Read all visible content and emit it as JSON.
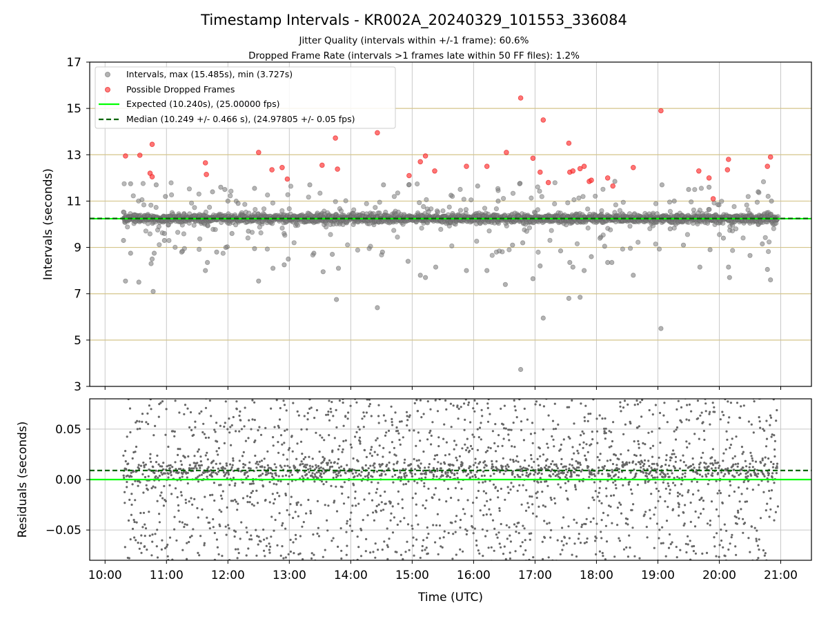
{
  "chart_data": [
    {
      "type": "scatter",
      "title": "Timestamp Intervals - KR002A_20240329_101553_336084",
      "subtitle_lines": [
        "Jitter Quality (intervals within +/-1 frame): 60.6%",
        "Dropped Frame Rate (intervals >1 frames late within 50 FF files): 1.2%"
      ],
      "xlabel": "",
      "ylabel": "Intervals (seconds)",
      "xlim_hours": [
        9.75,
        21.5
      ],
      "ylim": [
        3,
        17
      ],
      "yticks": [
        3,
        5,
        7,
        9,
        11,
        13,
        15,
        17
      ],
      "grid": "on",
      "legend_position": "top-left",
      "legend": [
        "Intervals, max (15.485s), min (3.727s)",
        "Possible Dropped Frames",
        "Expected (10.240s), (25.00000 fps)",
        "Median (10.249 +/- 0.466 s), (24.97805 +/- 0.05 fps)"
      ],
      "expected_interval": 10.24,
      "median_interval": 10.249,
      "dropped_frames": [
        {
          "x": "10:20",
          "y": 12.95
        },
        {
          "x": "10:34",
          "y": 12.98
        },
        {
          "x": "10:44",
          "y": 12.2
        },
        {
          "x": "10:46",
          "y": 12.05
        },
        {
          "x": "10:46",
          "y": 13.45
        },
        {
          "x": "11:38",
          "y": 12.65
        },
        {
          "x": "11:39",
          "y": 12.15
        },
        {
          "x": "12:30",
          "y": 13.1
        },
        {
          "x": "12:43",
          "y": 12.35
        },
        {
          "x": "12:53",
          "y": 12.45
        },
        {
          "x": "12:58",
          "y": 11.95
        },
        {
          "x": "13:32",
          "y": 12.55
        },
        {
          "x": "13:45",
          "y": 13.72
        },
        {
          "x": "13:47",
          "y": 12.38
        },
        {
          "x": "14:26",
          "y": 13.95
        },
        {
          "x": "14:57",
          "y": 12.1
        },
        {
          "x": "15:08",
          "y": 12.7
        },
        {
          "x": "15:13",
          "y": 12.95
        },
        {
          "x": "15:22",
          "y": 12.3
        },
        {
          "x": "15:53",
          "y": 12.5
        },
        {
          "x": "16:13",
          "y": 12.5
        },
        {
          "x": "16:32",
          "y": 13.1
        },
        {
          "x": "16:46",
          "y": 15.45
        },
        {
          "x": "16:58",
          "y": 12.85
        },
        {
          "x": "17:05",
          "y": 12.25
        },
        {
          "x": "17:08",
          "y": 14.5
        },
        {
          "x": "17:13",
          "y": 11.8
        },
        {
          "x": "17:33",
          "y": 13.5
        },
        {
          "x": "17:34",
          "y": 12.25
        },
        {
          "x": "17:37",
          "y": 12.3
        },
        {
          "x": "17:44",
          "y": 12.4
        },
        {
          "x": "17:48",
          "y": 12.5
        },
        {
          "x": "17:53",
          "y": 11.85
        },
        {
          "x": "17:55",
          "y": 11.9
        },
        {
          "x": "18:11",
          "y": 12.0
        },
        {
          "x": "18:16",
          "y": 11.65
        },
        {
          "x": "18:36",
          "y": 12.45
        },
        {
          "x": "19:03",
          "y": 14.9
        },
        {
          "x": "19:40",
          "y": 12.3
        },
        {
          "x": "19:50",
          "y": 12.0
        },
        {
          "x": "19:54",
          "y": 11.1
        },
        {
          "x": "20:08",
          "y": 12.35
        },
        {
          "x": "20:09",
          "y": 12.8
        },
        {
          "x": "20:47",
          "y": 12.5
        },
        {
          "x": "20:50",
          "y": 12.9
        }
      ],
      "outlier_intervals": [
        {
          "x": "10:20",
          "y": 7.55
        },
        {
          "x": "10:18",
          "y": 9.3
        },
        {
          "x": "10:25",
          "y": 8.75
        },
        {
          "x": "10:25",
          "y": 11.75
        },
        {
          "x": "10:33",
          "y": 7.5
        },
        {
          "x": "10:45",
          "y": 8.3
        },
        {
          "x": "10:46",
          "y": 8.5
        },
        {
          "x": "10:47",
          "y": 7.1
        },
        {
          "x": "10:48",
          "y": 8.75
        },
        {
          "x": "10:50",
          "y": 11.7
        },
        {
          "x": "10:58",
          "y": 9.3
        },
        {
          "x": "10:58",
          "y": 9.6
        },
        {
          "x": "10:59",
          "y": 11.2
        },
        {
          "x": "11:40",
          "y": 8.35
        },
        {
          "x": "11:38",
          "y": 8.0
        },
        {
          "x": "11:45",
          "y": 11.4
        },
        {
          "x": "11:49",
          "y": 8.8
        },
        {
          "x": "11:53",
          "y": 11.6
        },
        {
          "x": "11:57",
          "y": 11.5
        },
        {
          "x": "11:58",
          "y": 9.0
        },
        {
          "x": "12:00",
          "y": 11.0
        },
        {
          "x": "12:04",
          "y": 9.6
        },
        {
          "x": "12:10",
          "y": 10.9
        },
        {
          "x": "12:20",
          "y": 9.7
        },
        {
          "x": "12:26",
          "y": 11.55
        },
        {
          "x": "12:26",
          "y": 8.95
        },
        {
          "x": "12:30",
          "y": 7.55
        },
        {
          "x": "12:44",
          "y": 8.1
        },
        {
          "x": "12:55",
          "y": 8.25
        },
        {
          "x": "12:59",
          "y": 8.5
        },
        {
          "x": "13:20",
          "y": 11.7
        },
        {
          "x": "13:24",
          "y": 8.75
        },
        {
          "x": "13:33",
          "y": 7.95
        },
        {
          "x": "13:42",
          "y": 8.7
        },
        {
          "x": "13:46",
          "y": 6.75
        },
        {
          "x": "13:48",
          "y": 8.1
        },
        {
          "x": "14:26",
          "y": 6.4
        },
        {
          "x": "14:31",
          "y": 8.8
        },
        {
          "x": "14:32",
          "y": 11.7
        },
        {
          "x": "14:56",
          "y": 8.4
        },
        {
          "x": "15:08",
          "y": 7.8
        },
        {
          "x": "15:13",
          "y": 7.7
        },
        {
          "x": "15:23",
          "y": 8.15
        },
        {
          "x": "15:38",
          "y": 11.25
        },
        {
          "x": "15:53",
          "y": 8.0
        },
        {
          "x": "16:04",
          "y": 11.65
        },
        {
          "x": "16:13",
          "y": 8.0
        },
        {
          "x": "16:24",
          "y": 11.0
        },
        {
          "x": "16:31",
          "y": 7.4
        },
        {
          "x": "16:38",
          "y": 9.1
        },
        {
          "x": "16:45",
          "y": 11.75
        },
        {
          "x": "16:46",
          "y": 3.73
        },
        {
          "x": "16:48",
          "y": 9.2
        },
        {
          "x": "16:58",
          "y": 7.65
        },
        {
          "x": "17:05",
          "y": 8.2
        },
        {
          "x": "17:08",
          "y": 5.95
        },
        {
          "x": "17:25",
          "y": 8.85
        },
        {
          "x": "17:33",
          "y": 6.8
        },
        {
          "x": "17:34",
          "y": 8.35
        },
        {
          "x": "17:37",
          "y": 8.15
        },
        {
          "x": "17:44",
          "y": 6.85
        },
        {
          "x": "17:48",
          "y": 8.0
        },
        {
          "x": "17:55",
          "y": 8.6
        },
        {
          "x": "18:08",
          "y": 9.05
        },
        {
          "x": "18:11",
          "y": 8.35
        },
        {
          "x": "18:15",
          "y": 8.35
        },
        {
          "x": "18:18",
          "y": 11.85
        },
        {
          "x": "18:36",
          "y": 7.8
        },
        {
          "x": "19:03",
          "y": 5.5
        },
        {
          "x": "19:04",
          "y": 11.7
        },
        {
          "x": "19:12",
          "y": 9.8
        },
        {
          "x": "19:16",
          "y": 11.0
        },
        {
          "x": "19:25",
          "y": 9.1
        },
        {
          "x": "19:30",
          "y": 11.5
        },
        {
          "x": "19:41",
          "y": 8.15
        },
        {
          "x": "19:50",
          "y": 11.6
        },
        {
          "x": "19:51",
          "y": 8.9
        },
        {
          "x": "20:04",
          "y": 9.4
        },
        {
          "x": "20:09",
          "y": 8.15
        },
        {
          "x": "20:10",
          "y": 7.7
        },
        {
          "x": "20:30",
          "y": 8.65
        },
        {
          "x": "20:38",
          "y": 11.4
        },
        {
          "x": "20:42",
          "y": 9.15
        },
        {
          "x": "20:47",
          "y": 8.05
        },
        {
          "x": "20:50",
          "y": 7.6
        },
        {
          "x": "20:51",
          "y": 11.0
        }
      ]
    },
    {
      "type": "scatter",
      "xlabel": "Time (UTC)",
      "ylabel": "Residuals (seconds)",
      "xticks": [
        "10:00",
        "11:00",
        "12:00",
        "13:00",
        "14:00",
        "15:00",
        "16:00",
        "17:00",
        "18:00",
        "19:00",
        "20:00",
        "21:00"
      ],
      "yticks": [
        "0.05",
        "0.00",
        "−0.05"
      ],
      "ylim": [
        -0.08,
        0.08
      ],
      "time_range": [
        "10:18",
        "20:57"
      ],
      "approx_point_count": 2600,
      "expected_residual": 0.0,
      "median_residual": 0.009,
      "grid": "on"
    }
  ]
}
